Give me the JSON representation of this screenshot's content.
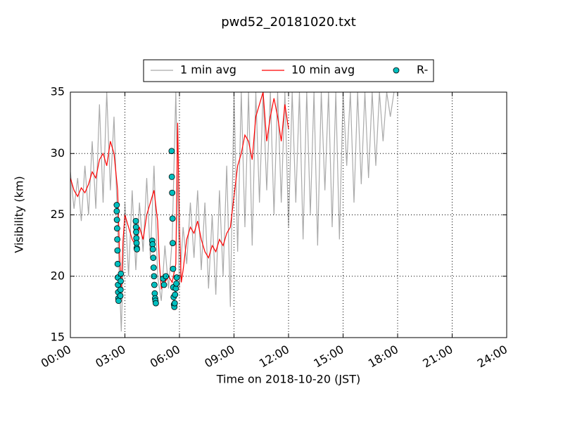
{
  "chart_data": {
    "type": "line",
    "title": "pwd52_20181020.txt",
    "xlabel": "Time on 2018-10-20 (JST)",
    "ylabel": "Visibility (km)",
    "xlim": [
      0,
      24
    ],
    "ylim": [
      15,
      35
    ],
    "xticks": [
      {
        "value": 0,
        "label": "00:00"
      },
      {
        "value": 3,
        "label": "03:00"
      },
      {
        "value": 6,
        "label": "06:00"
      },
      {
        "value": 9,
        "label": "09:00"
      },
      {
        "value": 12,
        "label": "12:00"
      },
      {
        "value": 15,
        "label": "15:00"
      },
      {
        "value": 18,
        "label": "18:00"
      },
      {
        "value": 21,
        "label": "21:00"
      },
      {
        "value": 24,
        "label": "24:00"
      }
    ],
    "yticks": [
      15,
      20,
      25,
      30,
      35
    ],
    "grid": true,
    "legend": "top",
    "series": [
      {
        "name": "1 min avg",
        "color": "#aaaaaa",
        "kind": "line",
        "x": [
          0,
          0.2,
          0.4,
          0.6,
          0.8,
          1,
          1.2,
          1.4,
          1.6,
          1.8,
          2,
          2.2,
          2.4,
          2.6,
          2.8,
          3,
          3.2,
          3.4,
          3.6,
          3.8,
          4,
          4.2,
          4.4,
          4.6,
          4.8,
          5,
          5.2,
          5.4,
          5.6,
          5.8,
          6,
          6.2,
          6.4,
          6.6,
          6.8,
          7,
          7.2,
          7.4,
          7.6,
          7.8,
          8,
          8.2,
          8.4,
          8.6,
          8.8,
          9,
          9.2,
          9.4,
          9.6,
          9.8,
          10,
          10.2,
          10.4,
          10.6,
          10.8,
          11,
          11.2,
          11.4,
          11.6,
          11.8,
          12,
          12.2,
          12.4,
          12.6,
          12.8,
          13,
          13.2,
          13.4,
          13.6,
          13.8,
          14,
          14.2,
          14.4,
          14.6,
          14.8,
          15,
          15.2,
          15.4,
          15.6,
          15.8,
          16,
          16.2,
          16.4,
          16.6,
          16.8,
          17,
          17.2,
          17.4,
          17.6,
          17.8
        ],
        "values": [
          28.5,
          25.5,
          28,
          24.5,
          29,
          25,
          31,
          25.5,
          34,
          26,
          35,
          27,
          33,
          24,
          15.5,
          26,
          20,
          27,
          20.5,
          26,
          22,
          28,
          21.5,
          29,
          20,
          18,
          22.5,
          19,
          23,
          35,
          19,
          24,
          21,
          26,
          21.5,
          27,
          20.5,
          26,
          19,
          25,
          18.5,
          27,
          20,
          29,
          17.5,
          35,
          22,
          35,
          24,
          35,
          22.5,
          35,
          26,
          35,
          27,
          35,
          25,
          35,
          26,
          35,
          24,
          35,
          26,
          35,
          23,
          35,
          25,
          35,
          22.5,
          35,
          27,
          35,
          24,
          35,
          23,
          35,
          29,
          35,
          26,
          35,
          27.5,
          35,
          28,
          35,
          29,
          35,
          31,
          35,
          33,
          35
        ]
      },
      {
        "name": "10 min avg",
        "color": "#ff0000",
        "kind": "line",
        "x": [
          0,
          0.2,
          0.4,
          0.6,
          0.8,
          1,
          1.2,
          1.4,
          1.6,
          1.8,
          2,
          2.2,
          2.4,
          2.6,
          2.7,
          2.8,
          2.9,
          3,
          3.2,
          3.4,
          3.6,
          3.8,
          4,
          4.2,
          4.4,
          4.6,
          4.8,
          4.9,
          5,
          5.2,
          5.4,
          5.6,
          5.8,
          5.9,
          6,
          6.1,
          6.2,
          6.4,
          6.6,
          6.8,
          7,
          7.2,
          7.4,
          7.6,
          7.8,
          8,
          8.2,
          8.4,
          8.6,
          8.8,
          9,
          9.2,
          9.4,
          9.6,
          9.8,
          10,
          10.2,
          10.4,
          10.6,
          10.8,
          11,
          11.2,
          11.4,
          11.6,
          11.8,
          12
        ],
        "values": [
          28,
          27,
          26.5,
          27.2,
          26.8,
          27.5,
          28.5,
          28,
          29.5,
          30,
          29,
          31,
          30,
          27,
          22,
          19,
          23,
          25,
          24,
          23,
          22.5,
          24,
          23,
          25,
          26,
          27,
          24.5,
          21,
          19,
          19.5,
          20,
          19.5,
          21,
          32.5,
          24,
          19.5,
          20.5,
          23,
          24,
          23.5,
          24.5,
          23,
          22,
          21.5,
          22.5,
          22,
          23,
          22.5,
          23.5,
          24,
          26.5,
          29,
          30,
          31.5,
          31,
          29.5,
          33,
          34,
          35,
          31,
          33,
          34.5,
          33,
          31,
          34,
          32
        ]
      },
      {
        "name": "R-",
        "color": "#00bfbf",
        "kind": "scatter",
        "x": [
          2.55,
          2.55,
          2.56,
          2.57,
          2.58,
          2.59,
          2.6,
          2.61,
          2.62,
          2.63,
          2.64,
          2.65,
          2.75,
          2.76,
          2.77,
          2.78,
          3.6,
          3.61,
          3.62,
          3.63,
          3.64,
          3.65,
          3.66,
          4.5,
          4.52,
          4.54,
          4.56,
          4.58,
          4.6,
          4.62,
          4.64,
          4.66,
          4.68,
          4.7,
          5.1,
          5.15,
          5.25,
          5.57,
          5.58,
          5.6,
          5.62,
          5.63,
          5.65,
          5.66,
          5.68,
          5.7,
          5.72,
          5.74,
          5.76,
          5.8,
          5.83,
          5.85
        ],
        "values": [
          25.8,
          25.3,
          24.6,
          23.9,
          23,
          22.1,
          21,
          19.9,
          19.3,
          18.7,
          18.2,
          18,
          18.4,
          18.9,
          19.6,
          20.2,
          24.5,
          24,
          23.6,
          23.1,
          22.7,
          22.3,
          22.2,
          22.9,
          22.6,
          22.2,
          21.5,
          20.7,
          20,
          19.3,
          18.6,
          18.2,
          18,
          17.8,
          19.8,
          19.3,
          20,
          30.2,
          28.1,
          26.8,
          24.7,
          22.7,
          20.6,
          19.1,
          18.3,
          17.7,
          17.5,
          17.8,
          18.5,
          19,
          19.4,
          19.9
        ]
      }
    ]
  }
}
